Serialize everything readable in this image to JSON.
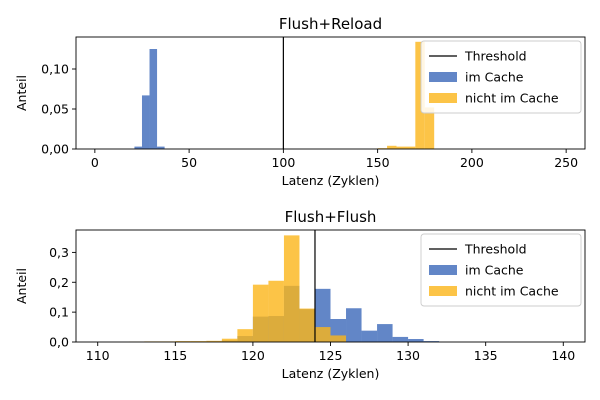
{
  "colors": {
    "in_cache": "#3b68b9",
    "not_in_cache": "#fbb519",
    "threshold": "#000000"
  },
  "chart_data": [
    {
      "type": "bar",
      "kind": "histogram",
      "title": "Flush+Reload",
      "xlabel": "Latenz (Zyklen)",
      "ylabel": "Anteil",
      "xlim": [
        -10,
        260
      ],
      "ylim": [
        0,
        0.14
      ],
      "xticks": [
        0,
        50,
        100,
        150,
        200,
        250
      ],
      "xtick_labels": [
        "0",
        "50",
        "100",
        "150",
        "200",
        "250"
      ],
      "yticks": [
        0,
        0.05,
        0.1
      ],
      "ytick_labels": [
        "0,00",
        "0,05",
        "0,10"
      ],
      "grid": false,
      "legend_position": "top-right",
      "threshold": {
        "name": "Threshold",
        "x": 100
      },
      "series": [
        {
          "name": "im Cache",
          "color_key": "in_cache",
          "opacity": 0.8,
          "bins": [
            {
              "x0": 21,
              "x1": 25,
              "value": 0.003
            },
            {
              "x0": 25,
              "x1": 29,
              "value": 0.067
            },
            {
              "x0": 29,
              "x1": 33,
              "value": 0.125
            },
            {
              "x0": 33,
              "x1": 37,
              "value": 0.003
            }
          ]
        },
        {
          "name": "nicht im Cache",
          "color_key": "not_in_cache",
          "opacity": 0.8,
          "bins": [
            {
              "x0": 150,
              "x1": 155,
              "value": 0.001
            },
            {
              "x0": 155,
              "x1": 160,
              "value": 0.004
            },
            {
              "x0": 160,
              "x1": 170,
              "value": 0.003
            },
            {
              "x0": 170,
              "x1": 175,
              "value": 0.134
            },
            {
              "x0": 175,
              "x1": 180,
              "value": 0.052
            }
          ]
        }
      ]
    },
    {
      "type": "bar",
      "kind": "histogram",
      "title": "Flush+Flush",
      "xlabel": "Latenz (Zyklen)",
      "ylabel": "Anteil",
      "xlim": [
        108.6,
        141.4
      ],
      "ylim": [
        0,
        0.375
      ],
      "xticks": [
        110,
        115,
        120,
        125,
        130,
        135,
        140
      ],
      "xtick_labels": [
        "110",
        "115",
        "120",
        "125",
        "130",
        "135",
        "140"
      ],
      "yticks": [
        0,
        0.1,
        0.2,
        0.3
      ],
      "ytick_labels": [
        "0,0",
        "0,1",
        "0,2",
        "0,3"
      ],
      "grid": false,
      "legend_position": "top-right",
      "threshold": {
        "name": "Threshold",
        "x": 124
      },
      "series": [
        {
          "name": "im Cache",
          "color_key": "in_cache",
          "opacity": 0.8,
          "bins": [
            {
              "x0": 117,
              "x1": 118,
              "value": 0.002
            },
            {
              "x0": 118,
              "x1": 119,
              "value": 0.005
            },
            {
              "x0": 119,
              "x1": 120,
              "value": 0.02
            },
            {
              "x0": 120,
              "x1": 121,
              "value": 0.085
            },
            {
              "x0": 121,
              "x1": 122,
              "value": 0.087
            },
            {
              "x0": 122,
              "x1": 123,
              "value": 0.188
            },
            {
              "x0": 123,
              "x1": 124,
              "value": 0.11
            },
            {
              "x0": 124,
              "x1": 125,
              "value": 0.178
            },
            {
              "x0": 125,
              "x1": 126,
              "value": 0.077
            },
            {
              "x0": 126,
              "x1": 127,
              "value": 0.113
            },
            {
              "x0": 127,
              "x1": 128,
              "value": 0.038
            },
            {
              "x0": 128,
              "x1": 129,
              "value": 0.06
            },
            {
              "x0": 129,
              "x1": 130,
              "value": 0.017
            },
            {
              "x0": 130,
              "x1": 131,
              "value": 0.01
            },
            {
              "x0": 131,
              "x1": 132,
              "value": 0.003
            }
          ]
        },
        {
          "name": "nicht im Cache",
          "color_key": "not_in_cache",
          "opacity": 0.8,
          "bins": [
            {
              "x0": 112,
              "x1": 113,
              "value": 0.001
            },
            {
              "x0": 113,
              "x1": 114,
              "value": 0.002
            },
            {
              "x0": 114,
              "x1": 115,
              "value": 0.002
            },
            {
              "x0": 115,
              "x1": 116,
              "value": 0.003
            },
            {
              "x0": 116,
              "x1": 117,
              "value": 0.003
            },
            {
              "x0": 117,
              "x1": 118,
              "value": 0.004
            },
            {
              "x0": 118,
              "x1": 119,
              "value": 0.011
            },
            {
              "x0": 119,
              "x1": 120,
              "value": 0.043
            },
            {
              "x0": 120,
              "x1": 121,
              "value": 0.192
            },
            {
              "x0": 121,
              "x1": 122,
              "value": 0.205
            },
            {
              "x0": 122,
              "x1": 123,
              "value": 0.357
            },
            {
              "x0": 123,
              "x1": 124,
              "value": 0.112
            },
            {
              "x0": 124,
              "x1": 125,
              "value": 0.05
            },
            {
              "x0": 125,
              "x1": 126,
              "value": 0.022
            }
          ]
        }
      ]
    }
  ]
}
